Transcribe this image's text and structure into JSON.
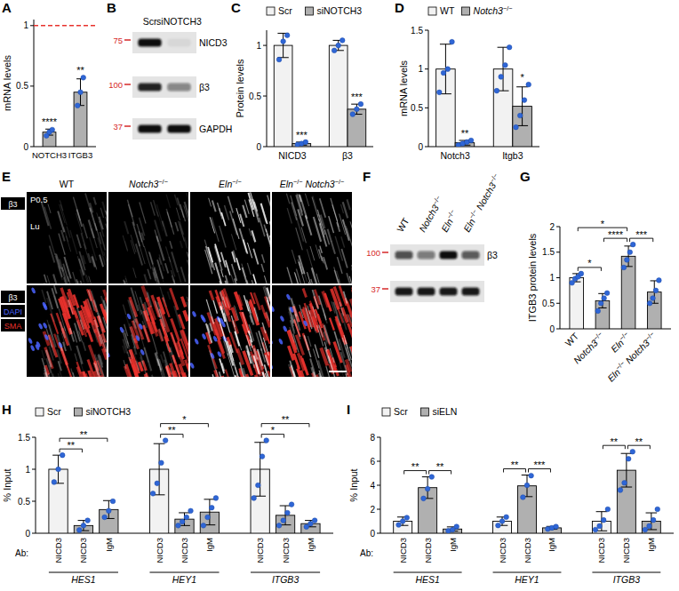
{
  "chart_data": [
    {
      "panel_label": "A",
      "type": "bar",
      "y_label": "mRNA levels",
      "categories": [
        "NOTCH3",
        "ITGB3"
      ],
      "values": [
        0.12,
        0.45
      ],
      "errors": [
        0.025,
        0.11
      ],
      "points": [
        [
          0.09,
          0.12,
          0.14
        ],
        [
          0.34,
          0.45,
          0.57
        ]
      ],
      "color": "#b0b0b0",
      "ylim": [
        0,
        1.05
      ],
      "yticks": [
        0,
        0.5,
        1
      ],
      "reference_line": {
        "value": 1,
        "color": "#e8322d",
        "line_style": "dashed"
      },
      "annotations": [
        {
          "text": "****",
          "bar": 0
        },
        {
          "text": "**",
          "bar": 1
        }
      ]
    },
    {
      "panel_label": "C",
      "type": "bar",
      "y_label": "Protein levels",
      "categories": [
        "NICD3",
        "β3"
      ],
      "series": [
        {
          "name": "Scr",
          "color": "#f2f2f2",
          "values": [
            1,
            1
          ],
          "errors": [
            0.12,
            0.05
          ],
          "points": [
            [
              0.86,
              1.04,
              1.1
            ],
            [
              0.95,
              1.0,
              1.05
            ]
          ]
        },
        {
          "name": "siNOTCH3",
          "color": "#b0b0b0",
          "values": [
            0.03,
            0.37
          ],
          "errors": [
            0.015,
            0.05
          ],
          "points": [
            [
              0.02,
              0.03,
              0.045
            ],
            [
              0.32,
              0.37,
              0.42
            ]
          ]
        }
      ],
      "ylim": [
        0,
        1.15
      ],
      "yticks": [
        0,
        0.5,
        1
      ],
      "legend": "top",
      "annotations": [
        {
          "text": "***",
          "bar": 1
        },
        {
          "text": "***",
          "bar": 3
        }
      ]
    },
    {
      "panel_label": "D",
      "type": "bar",
      "y_label": "mRNA levels",
      "categories": [
        "Notch3",
        "Itgb3"
      ],
      "series": [
        {
          "name": "WT",
          "color": "#f2f2f2",
          "values": [
            1.0,
            1.0
          ],
          "errors": [
            0.32,
            0.28
          ],
          "points": [
            [
              0.7,
              0.95,
              1.0,
              1.35
            ],
            [
              0.72,
              0.9,
              1.05,
              1.28
            ]
          ]
        },
        {
          "name": "Notch3−/−",
          "color": "#b0b0b0",
          "values": [
            0.05,
            0.52
          ],
          "errors": [
            0.03,
            0.25
          ],
          "points": [
            [
              0.02,
              0.04,
              0.06,
              0.08
            ],
            [
              0.25,
              0.4,
              0.6,
              0.8
            ]
          ]
        }
      ],
      "ylim": [
        0,
        1.5
      ],
      "yticks": [
        0,
        0.5,
        1,
        1.5
      ],
      "legend": "top",
      "annotations": [
        {
          "text": "**",
          "bar": 1
        },
        {
          "text": "*",
          "bar": 3
        }
      ]
    },
    {
      "panel_label": "G",
      "type": "bar",
      "y_label": "ITGB3 protein levels",
      "categories": [
        "WT",
        "Notch3−/−",
        "Eln−/−",
        "Eln−/− Notch3−/−"
      ],
      "values": [
        1.0,
        0.55,
        1.42,
        0.72
      ],
      "errors": [
        0.08,
        0.14,
        0.2,
        0.22
      ],
      "points": [
        [
          0.9,
          0.98,
          1.02,
          1.08
        ],
        [
          0.35,
          0.5,
          0.6,
          0.7
        ],
        [
          1.2,
          1.35,
          1.5,
          1.65
        ],
        [
          0.5,
          0.6,
          0.75,
          0.95
        ]
      ],
      "colors": [
        "#f2f2f2",
        "#b0b0b0",
        "#b0b0b0",
        "#b0b0b0"
      ],
      "ylim": [
        0,
        2
      ],
      "yticks": [
        0,
        0.5,
        1,
        1.5,
        2
      ],
      "annotations": [
        {
          "text": "*",
          "from": 0,
          "to": 1
        },
        {
          "text": "*",
          "from": 0,
          "to": 2
        },
        {
          "text": "****",
          "from": 1,
          "to": 2
        },
        {
          "text": "***",
          "from": 2,
          "to": 3
        }
      ]
    },
    {
      "panel_label": "H",
      "type": "bar",
      "y_label": "% Input",
      "category_prefix": "Ab:",
      "groups": [
        "HES1",
        "HEY1",
        "ITGB3"
      ],
      "categories": [
        "NICD3",
        "NICD3",
        "IgM",
        "NICD3",
        "NICD3",
        "IgM",
        "NICD3",
        "NICD3",
        "IgM"
      ],
      "values": [
        1.0,
        0.12,
        0.37,
        1.0,
        0.22,
        0.33,
        1.0,
        0.28,
        0.15
      ],
      "errors": [
        0.22,
        0.08,
        0.14,
        0.4,
        0.1,
        0.2,
        0.42,
        0.15,
        0.05
      ],
      "points": [
        [
          0.8,
          1.0,
          1.22
        ],
        [
          0.05,
          0.12,
          0.2
        ],
        [
          0.25,
          0.35,
          0.5
        ],
        [
          0.62,
          0.78,
          1.1,
          1.45
        ],
        [
          0.12,
          0.18,
          0.25,
          0.35
        ],
        [
          0.12,
          0.25,
          0.4,
          0.55
        ],
        [
          0.55,
          0.75,
          1.2,
          1.45
        ],
        [
          0.12,
          0.2,
          0.32,
          0.45
        ],
        [
          0.1,
          0.15,
          0.2
        ]
      ],
      "colors": [
        "#f2f2f2",
        "#b0b0b0",
        "#b0b0b0",
        "#f2f2f2",
        "#b0b0b0",
        "#b0b0b0",
        "#f2f2f2",
        "#b0b0b0",
        "#b0b0b0"
      ],
      "legend_items": [
        {
          "name": "Scr",
          "color": "#f2f2f2"
        },
        {
          "name": "siNOTCH3",
          "color": "#b0b0b0"
        }
      ],
      "ylim": [
        0,
        1.5
      ],
      "yticks": [
        0,
        0.5,
        1,
        1.5
      ],
      "legend": "top",
      "annotations": [
        {
          "text": "**",
          "from": 0,
          "to": 1
        },
        {
          "text": "**",
          "from": 0,
          "to": 2
        },
        {
          "text": "**",
          "from": 3,
          "to": 4
        },
        {
          "text": "*",
          "from": 3,
          "to": 5
        },
        {
          "text": "*",
          "from": 6,
          "to": 7
        },
        {
          "text": "**",
          "from": 6,
          "to": 8
        }
      ]
    },
    {
      "panel_label": "I",
      "type": "bar",
      "y_label": "% Input",
      "category_prefix": "Ab:",
      "groups": [
        "HES1",
        "HEY1",
        "ITGB3"
      ],
      "categories": [
        "NICD3",
        "NICD3",
        "IgM",
        "NICD3",
        "NICD3",
        "IgM",
        "NICD3",
        "NICD3",
        "IgM"
      ],
      "values": [
        1.0,
        3.8,
        0.35,
        1.0,
        3.95,
        0.45,
        1.0,
        5.25,
        1.0
      ],
      "errors": [
        0.35,
        0.9,
        0.18,
        0.35,
        0.9,
        0.12,
        0.8,
        1.4,
        0.7
      ],
      "points": [
        [
          0.7,
          1.0,
          1.3
        ],
        [
          2.9,
          3.7,
          4.7
        ],
        [
          0.2,
          0.3,
          0.55
        ],
        [
          0.65,
          1.0,
          1.35
        ],
        [
          3.0,
          4.0,
          4.8
        ],
        [
          0.35,
          0.45,
          0.55
        ],
        [
          0.3,
          0.6,
          1.1,
          2.0
        ],
        [
          3.6,
          4.2,
          6.2,
          6.8
        ],
        [
          0.3,
          0.6,
          1.1,
          2.0
        ]
      ],
      "colors": [
        "#f2f2f2",
        "#b0b0b0",
        "#b0b0b0",
        "#f2f2f2",
        "#b0b0b0",
        "#b0b0b0",
        "#f2f2f2",
        "#b0b0b0",
        "#b0b0b0"
      ],
      "legend_items": [
        {
          "name": "Scr",
          "color": "#f2f2f2"
        },
        {
          "name": "siELN",
          "color": "#b0b0b0"
        }
      ],
      "ylim": [
        0,
        8
      ],
      "yticks": [
        0,
        2,
        4,
        6,
        8
      ],
      "legend": "top",
      "annotations": [
        {
          "text": "**",
          "from": 0,
          "to": 1
        },
        {
          "text": "**",
          "from": 1,
          "to": 2
        },
        {
          "text": "**",
          "from": 3,
          "to": 4
        },
        {
          "text": "***",
          "from": 4,
          "to": 5
        },
        {
          "text": "**",
          "from": 6,
          "to": 7
        },
        {
          "text": "**",
          "from": 7,
          "to": 8
        }
      ]
    }
  ],
  "blots": [
    {
      "panel_label": "B",
      "lanes": [
        "Scr",
        "siNOTCH3"
      ],
      "rows": [
        {
          "label": "NICD3",
          "marker": 75,
          "intensity": [
            1,
            0.06
          ]
        },
        {
          "label": "β3",
          "marker": 100,
          "intensity": [
            0.9,
            0.45
          ]
        },
        {
          "label": "GAPDH",
          "marker": 37,
          "intensity": [
            1,
            1
          ]
        }
      ]
    },
    {
      "panel_label": "F",
      "lanes": [
        "WT",
        "Notch3−/−",
        "Eln−/−",
        "Eln−/− Notch3−/−"
      ],
      "rows": [
        {
          "label": "β3",
          "marker": 100,
          "intensity": [
            0.7,
            0.5,
            1,
            0.65
          ]
        },
        {
          "label": null,
          "marker": 37,
          "intensity": [
            0.95,
            0.95,
            0.95,
            0.95
          ]
        }
      ]
    }
  ],
  "microscopy": {
    "panel_label": "E",
    "age_label": "P0.5",
    "lumen_label": "Lu",
    "columns": [
      "WT",
      "Notch3−/−",
      "Eln−/−",
      "Eln−/− Notch3−/−"
    ],
    "rows": [
      {
        "channels": [
          {
            "name": "β3",
            "color": "#ffffff"
          }
        ],
        "intensity": [
          0.35,
          0.3,
          0.9,
          0.55
        ]
      },
      {
        "channels": [
          {
            "name": "β3",
            "color": "#ffffff"
          },
          {
            "name": "DAPI",
            "color": "#4a63ff"
          },
          {
            "name": "SMA",
            "color": "#e8322d"
          }
        ],
        "intensity": [
          0.35,
          0.3,
          0.9,
          0.55
        ]
      }
    ]
  }
}
